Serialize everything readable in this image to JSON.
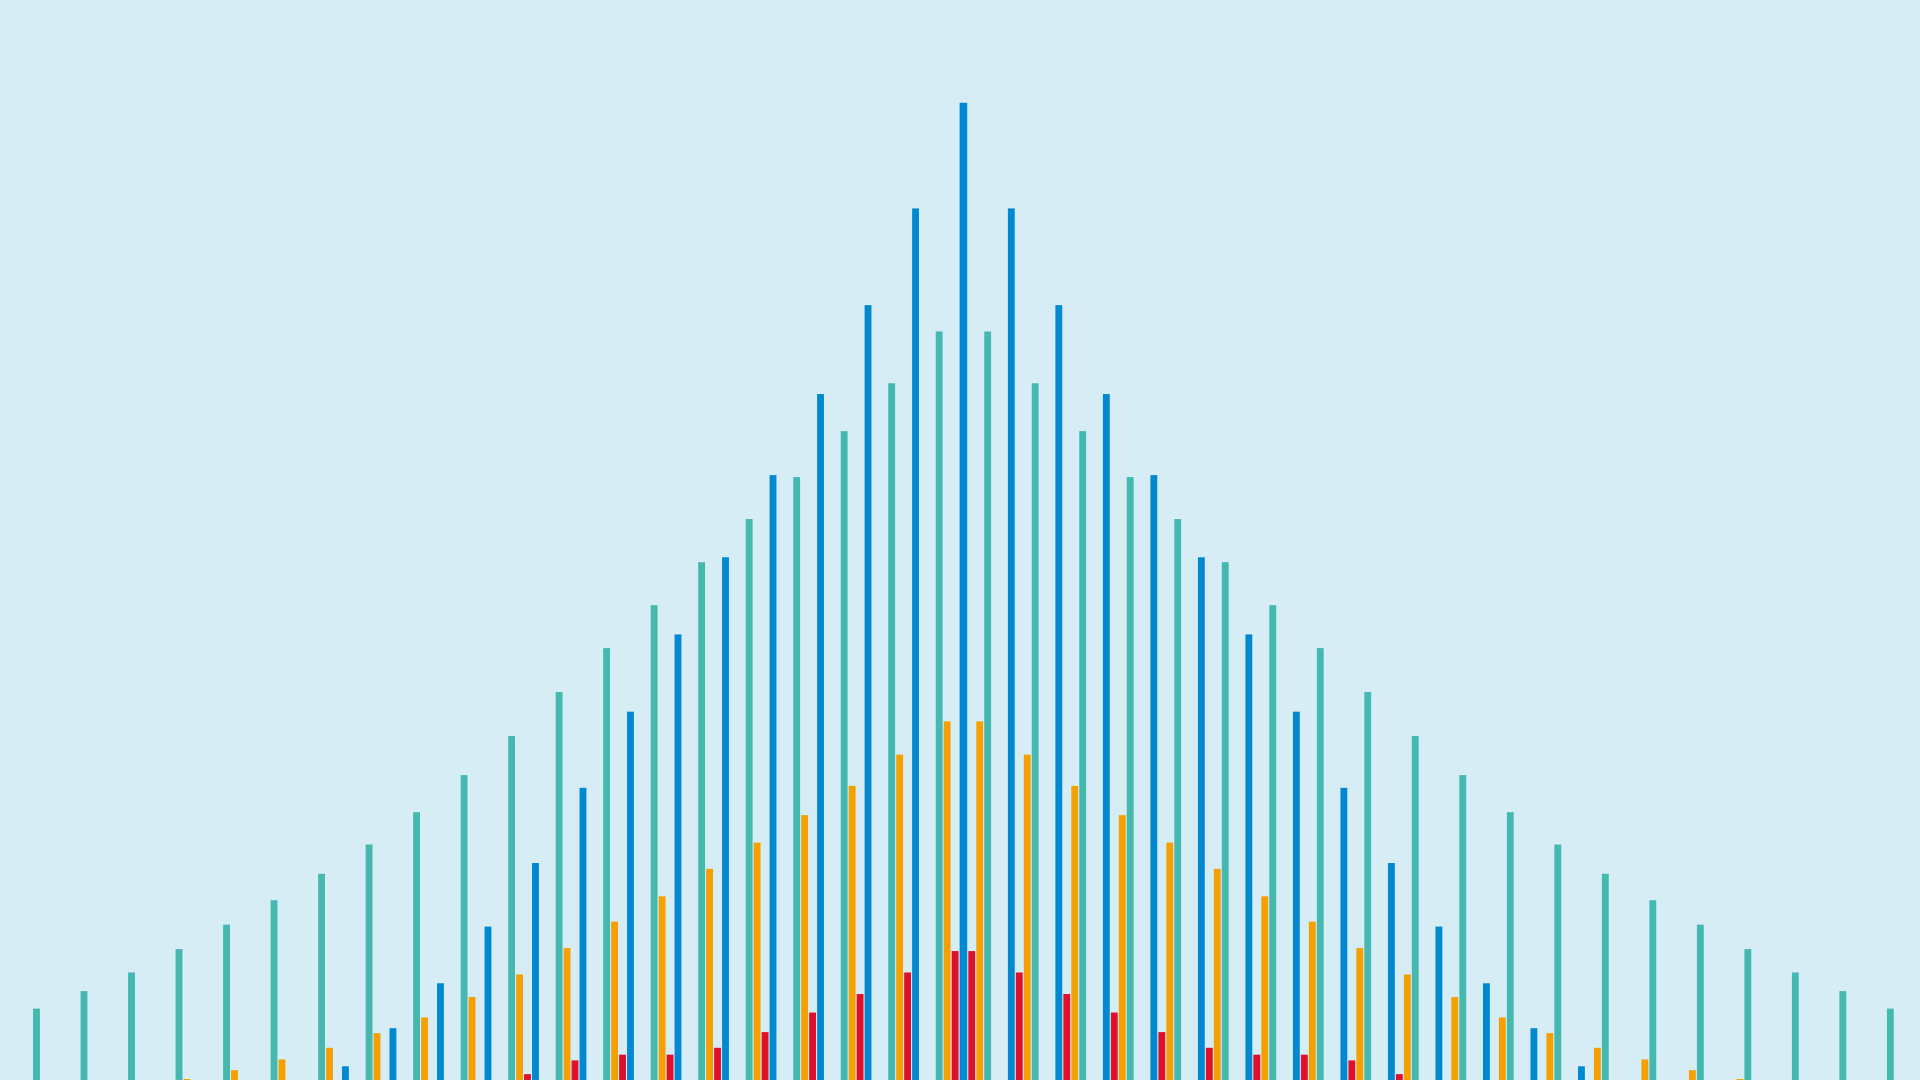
{
  "chart_data": {
    "type": "bar",
    "title": "",
    "xlabel": "",
    "ylabel": "",
    "ylim": [
      0,
      100
    ],
    "grid": false,
    "axes_visible": false,
    "legend": "none",
    "symmetric": true,
    "background": "#d6edf5",
    "series": [
      {
        "color": "#45b8b0",
        "values": [
          7.3,
          9.1,
          11.0,
          13.4,
          15.9,
          18.4,
          21.1,
          24.1,
          27.4,
          31.2,
          35.2,
          39.7,
          44.2,
          48.6,
          53.0,
          57.4,
          61.7,
          66.4,
          71.3,
          76.6,
          76.6,
          71.3,
          66.4,
          61.7,
          57.4,
          53.0,
          48.6,
          44.2,
          39.7,
          35.2,
          31.2,
          27.4,
          24.1,
          21.1,
          18.4,
          15.9,
          13.4,
          11.0,
          9.1,
          7.3
        ]
      },
      {
        "color": "#f5a000",
        "values": [
          0,
          0,
          0,
          0.1,
          1.0,
          2.1,
          3.3,
          4.8,
          6.4,
          8.5,
          10.8,
          13.5,
          16.2,
          18.8,
          21.6,
          24.3,
          27.1,
          30.1,
          33.3,
          36.7,
          36.7,
          33.3,
          30.1,
          27.1,
          24.3,
          21.6,
          18.8,
          16.2,
          13.5,
          10.8,
          8.5,
          6.4,
          4.8,
          3.3,
          2.1,
          1.0,
          0.1,
          0,
          0,
          0
        ]
      },
      {
        "color": "#e0102a",
        "values": [
          0,
          0,
          0,
          0,
          0,
          0,
          0,
          0,
          0,
          0,
          0.6,
          2.0,
          2.6,
          2.6,
          3.3,
          4.9,
          6.9,
          8.8,
          11.0,
          13.2,
          13.2,
          11.0,
          8.8,
          6.9,
          4.9,
          3.3,
          2.6,
          2.6,
          2.0,
          0.6,
          0,
          0,
          0,
          0,
          0,
          0,
          0,
          0,
          0,
          0
        ]
      },
      {
        "color": "#0088d1",
        "values": [
          0,
          0,
          0,
          0,
          0,
          0,
          1.4,
          5.3,
          9.9,
          15.7,
          22.2,
          29.9,
          37.7,
          45.6,
          53.5,
          61.9,
          70.2,
          79.3,
          89.2,
          100,
          100,
          89.2,
          79.3,
          70.2,
          61.9,
          53.5,
          45.6,
          37.7,
          29.9,
          22.2,
          15.7,
          9.9,
          5.3,
          1.4,
          0,
          0,
          0,
          0,
          0,
          0
        ]
      }
    ]
  }
}
